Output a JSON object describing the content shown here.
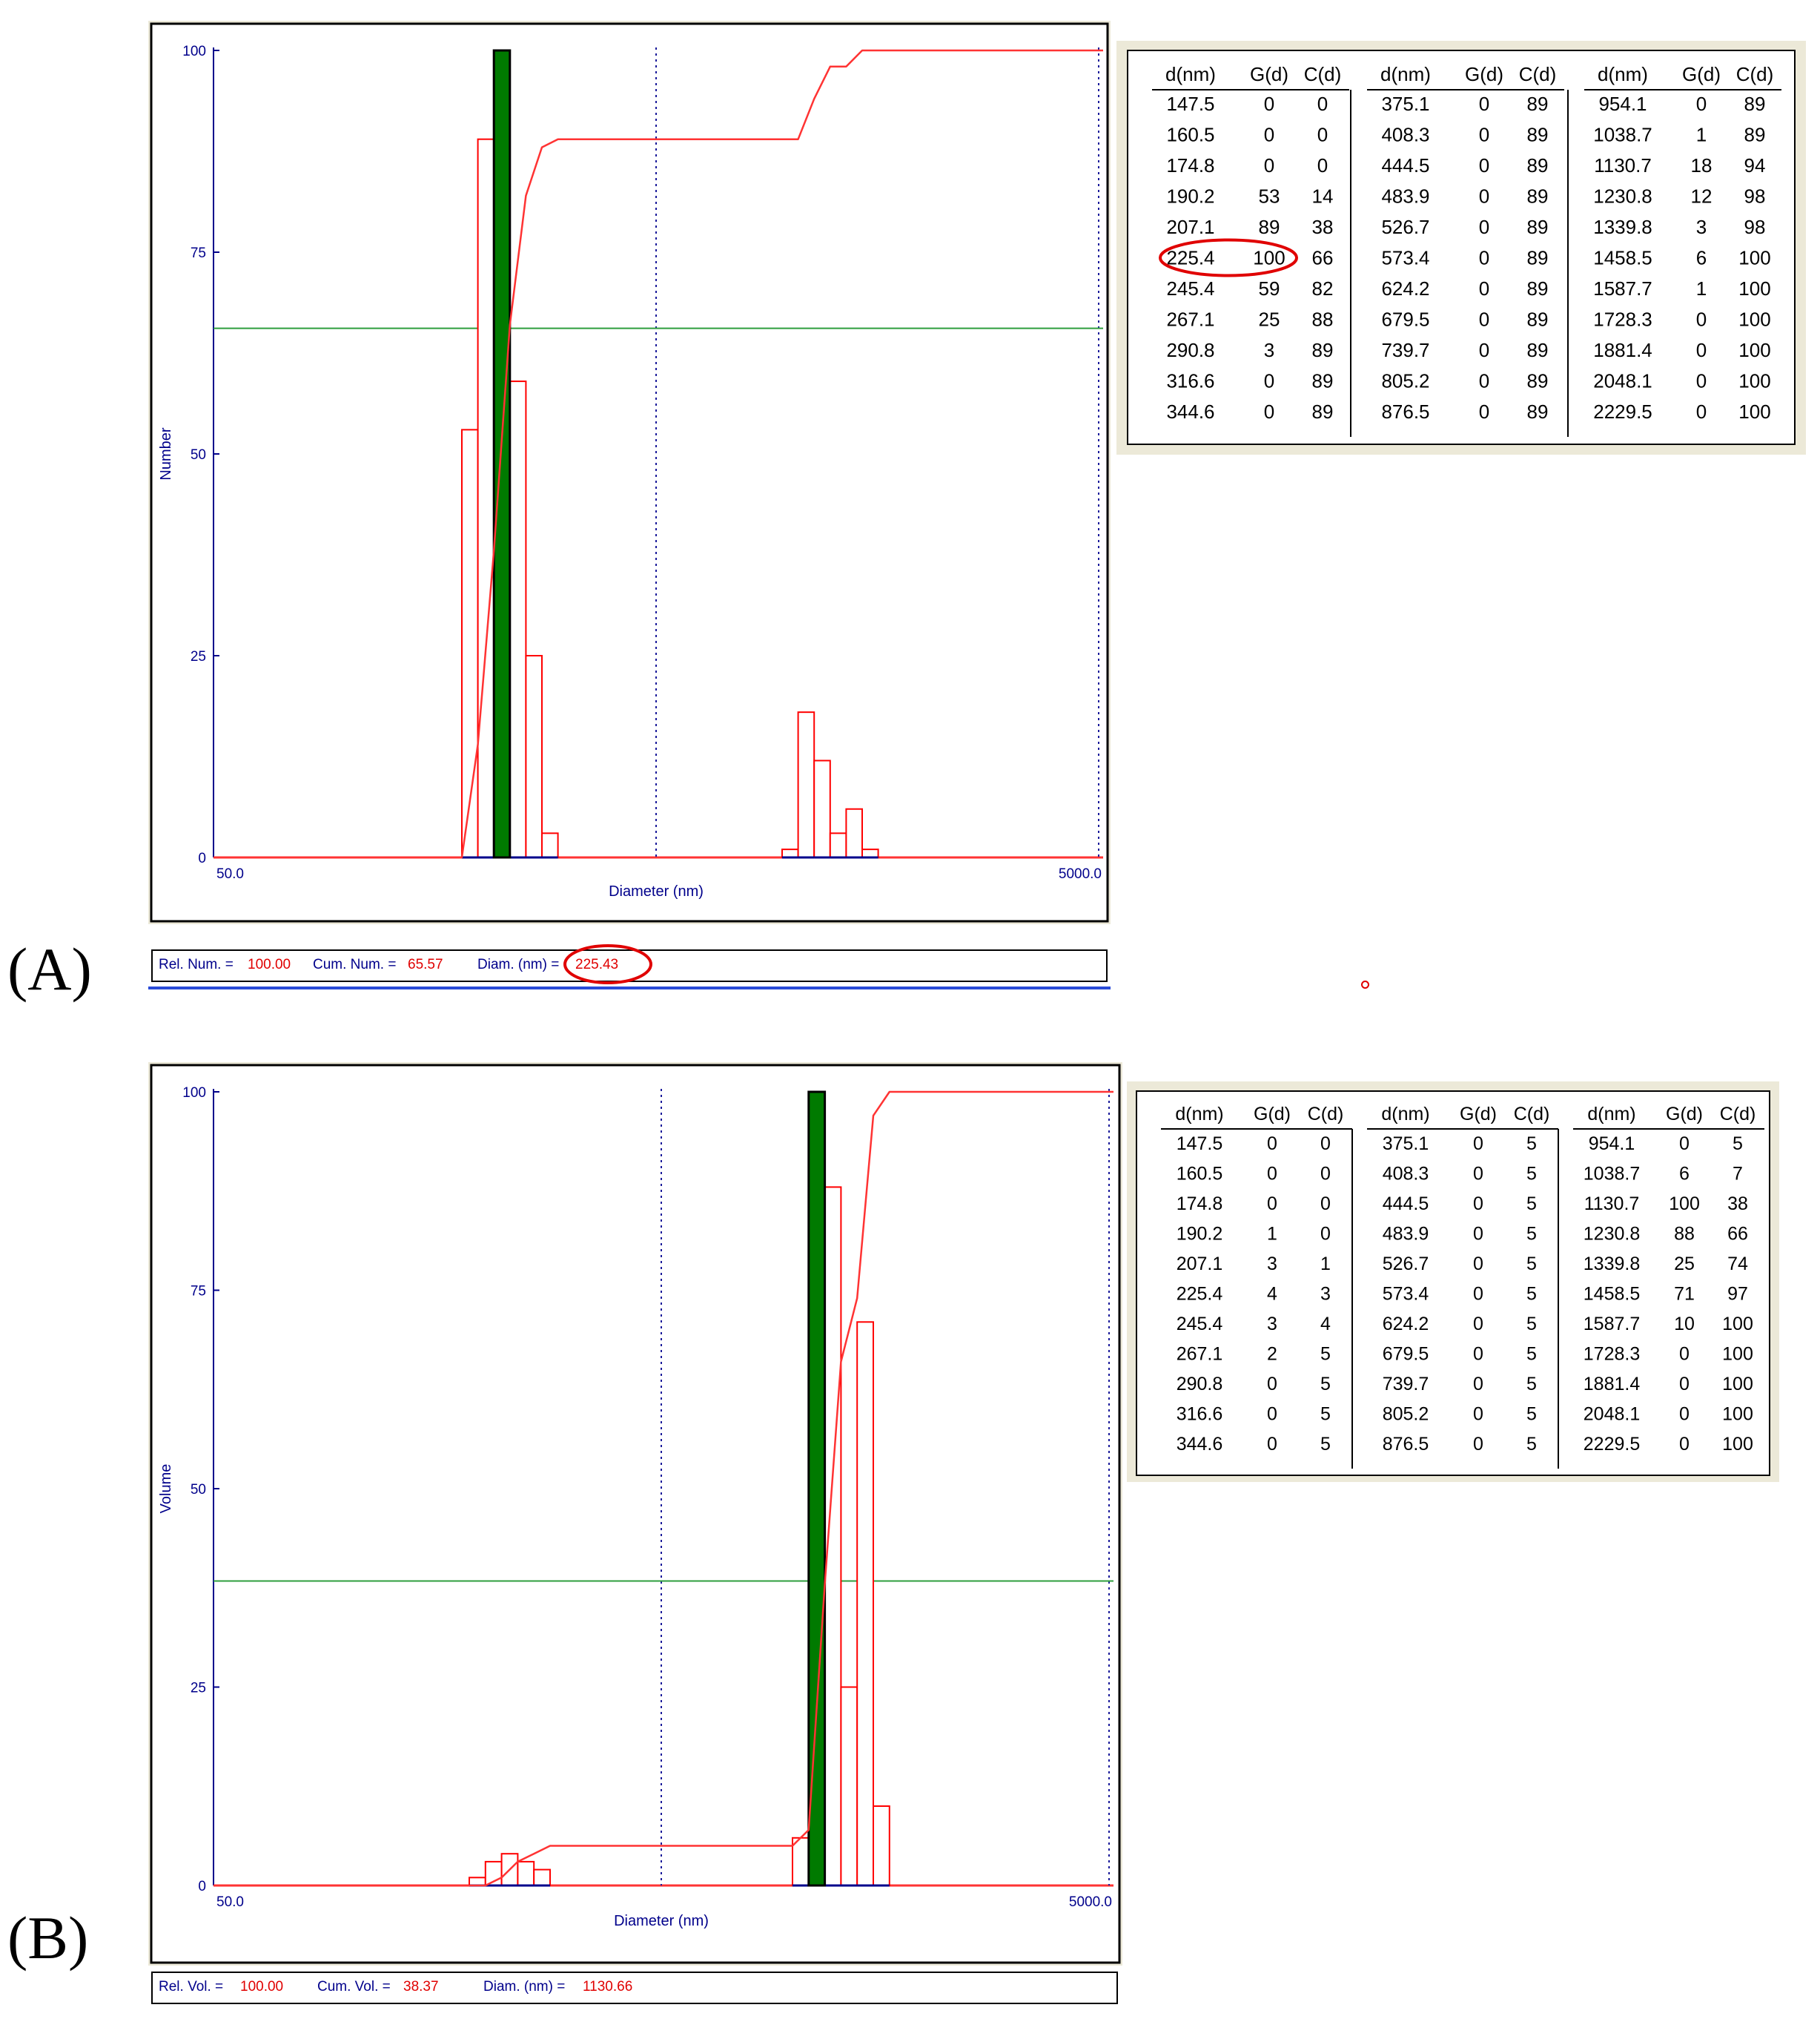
{
  "figure": {
    "panel_labels": [
      "(A)",
      "(B)"
    ],
    "colors": {
      "axis": "#00008b",
      "histogram": "#ff0000",
      "cumulative": "#ff3333",
      "selected_bar": "#007a00",
      "marker_line": "#2e9e3e",
      "grid_dotted": "#1a1a9a",
      "highlight": "#e00000"
    }
  },
  "chart_data": [
    {
      "type": "bar",
      "panel": "(A)",
      "ylabel": "Number",
      "xlabel": "Diameter (nm)",
      "x_scale": "log",
      "xlim": [
        50.0,
        5000.0
      ],
      "x_tick_labels": [
        "50.0",
        "5000.0"
      ],
      "ylim": [
        0,
        100
      ],
      "y_ticks": [
        0,
        25,
        50,
        75,
        100
      ],
      "categories": [
        "147.5",
        "160.5",
        "174.8",
        "190.2",
        "207.1",
        "225.4",
        "245.4",
        "267.1",
        "290.8",
        "316.6",
        "344.6",
        "375.1",
        "408.3",
        "444.5",
        "483.9",
        "526.7",
        "573.4",
        "624.2",
        "679.5",
        "739.7",
        "805.2",
        "876.5",
        "954.1",
        "1038.7",
        "1130.7",
        "1230.8",
        "1339.8",
        "1458.5",
        "1587.7",
        "1728.3",
        "1881.4",
        "2048.1",
        "2229.5"
      ],
      "series": [
        {
          "name": "G(d)",
          "kind": "histogram",
          "values": [
            0,
            0,
            0,
            53,
            89,
            100,
            59,
            25,
            3,
            0,
            0,
            0,
            0,
            0,
            0,
            0,
            0,
            0,
            0,
            0,
            0,
            0,
            0,
            1,
            18,
            12,
            3,
            6,
            1,
            0,
            0,
            0,
            0
          ]
        },
        {
          "name": "C(d)",
          "kind": "cumulative-line",
          "values": [
            0,
            0,
            0,
            14,
            38,
            66,
            82,
            88,
            89,
            89,
            89,
            89,
            89,
            89,
            89,
            89,
            89,
            89,
            89,
            89,
            89,
            89,
            89,
            89,
            94,
            98,
            98,
            100,
            100,
            100,
            100,
            100,
            100
          ]
        }
      ],
      "selected_bin": "225.4",
      "horizontal_marker": 65.57,
      "vertical_dotted_x": [
        500,
        5000
      ],
      "status": {
        "rel_label": "Rel. Num. =",
        "rel_value": "100.00",
        "cum_label": "Cum. Num. =",
        "cum_value": "65.57",
        "diam_label": "Diam. (nm) =",
        "diam_value": "225.43"
      },
      "table": {
        "headers": [
          "d(nm)",
          "G(d)",
          "C(d)"
        ],
        "rows": [
          [
            [
              "147.5",
              "0",
              "0"
            ],
            [
              "375.1",
              "0",
              "89"
            ],
            [
              "954.1",
              "0",
              "89"
            ]
          ],
          [
            [
              "160.5",
              "0",
              "0"
            ],
            [
              "408.3",
              "0",
              "89"
            ],
            [
              "1038.7",
              "1",
              "89"
            ]
          ],
          [
            [
              "174.8",
              "0",
              "0"
            ],
            [
              "444.5",
              "0",
              "89"
            ],
            [
              "1130.7",
              "18",
              "94"
            ]
          ],
          [
            [
              "190.2",
              "53",
              "14"
            ],
            [
              "483.9",
              "0",
              "89"
            ],
            [
              "1230.8",
              "12",
              "98"
            ]
          ],
          [
            [
              "207.1",
              "89",
              "38"
            ],
            [
              "526.7",
              "0",
              "89"
            ],
            [
              "1339.8",
              "3",
              "98"
            ]
          ],
          [
            [
              "225.4",
              "100",
              "66"
            ],
            [
              "573.4",
              "0",
              "89"
            ],
            [
              "1458.5",
              "6",
              "100"
            ]
          ],
          [
            [
              "245.4",
              "59",
              "82"
            ],
            [
              "624.2",
              "0",
              "89"
            ],
            [
              "1587.7",
              "1",
              "100"
            ]
          ],
          [
            [
              "267.1",
              "25",
              "88"
            ],
            [
              "679.5",
              "0",
              "89"
            ],
            [
              "1728.3",
              "0",
              "100"
            ]
          ],
          [
            [
              "290.8",
              "3",
              "89"
            ],
            [
              "739.7",
              "0",
              "89"
            ],
            [
              "1881.4",
              "0",
              "100"
            ]
          ],
          [
            [
              "316.6",
              "0",
              "89"
            ],
            [
              "805.2",
              "0",
              "89"
            ],
            [
              "2048.1",
              "0",
              "100"
            ]
          ],
          [
            [
              "344.6",
              "0",
              "89"
            ],
            [
              "876.5",
              "0",
              "89"
            ],
            [
              "2229.5",
              "0",
              "100"
            ]
          ]
        ],
        "circled_row": 5
      }
    },
    {
      "type": "bar",
      "panel": "(B)",
      "ylabel": "Volume",
      "xlabel": "Diameter (nm)",
      "x_scale": "log",
      "xlim": [
        50.0,
        5000.0
      ],
      "x_tick_labels": [
        "50.0",
        "5000.0"
      ],
      "ylim": [
        0,
        100
      ],
      "y_ticks": [
        0,
        25,
        50,
        75,
        100
      ],
      "categories": [
        "147.5",
        "160.5",
        "174.8",
        "190.2",
        "207.1",
        "225.4",
        "245.4",
        "267.1",
        "290.8",
        "316.6",
        "344.6",
        "375.1",
        "408.3",
        "444.5",
        "483.9",
        "526.7",
        "573.4",
        "624.2",
        "679.5",
        "739.7",
        "805.2",
        "876.5",
        "954.1",
        "1038.7",
        "1130.7",
        "1230.8",
        "1339.8",
        "1458.5",
        "1587.7",
        "1728.3",
        "1881.4",
        "2048.1",
        "2229.5"
      ],
      "series": [
        {
          "name": "G(d)",
          "kind": "histogram",
          "values": [
            0,
            0,
            0,
            1,
            3,
            4,
            3,
            2,
            0,
            0,
            0,
            0,
            0,
            0,
            0,
            0,
            0,
            0,
            0,
            0,
            0,
            0,
            0,
            6,
            100,
            88,
            25,
            71,
            10,
            0,
            0,
            0,
            0
          ]
        },
        {
          "name": "C(d)",
          "kind": "cumulative-line",
          "values": [
            0,
            0,
            0,
            0,
            1,
            3,
            4,
            5,
            5,
            5,
            5,
            5,
            5,
            5,
            5,
            5,
            5,
            5,
            5,
            5,
            5,
            5,
            5,
            7,
            38,
            66,
            74,
            97,
            100,
            100,
            100,
            100,
            100
          ]
        }
      ],
      "selected_bin": "1130.7",
      "horizontal_marker": 38.37,
      "vertical_dotted_x": [
        500,
        5000
      ],
      "status": {
        "rel_label": "Rel. Vol. =",
        "rel_value": "100.00",
        "cum_label": "Cum. Vol. =",
        "cum_value": "38.37",
        "diam_label": "Diam. (nm) =",
        "diam_value": "1130.66"
      },
      "table": {
        "headers": [
          "d(nm)",
          "G(d)",
          "C(d)"
        ],
        "rows": [
          [
            [
              "147.5",
              "0",
              "0"
            ],
            [
              "375.1",
              "0",
              "5"
            ],
            [
              "954.1",
              "0",
              "5"
            ]
          ],
          [
            [
              "160.5",
              "0",
              "0"
            ],
            [
              "408.3",
              "0",
              "5"
            ],
            [
              "1038.7",
              "6",
              "7"
            ]
          ],
          [
            [
              "174.8",
              "0",
              "0"
            ],
            [
              "444.5",
              "0",
              "5"
            ],
            [
              "1130.7",
              "100",
              "38"
            ]
          ],
          [
            [
              "190.2",
              "1",
              "0"
            ],
            [
              "483.9",
              "0",
              "5"
            ],
            [
              "1230.8",
              "88",
              "66"
            ]
          ],
          [
            [
              "207.1",
              "3",
              "1"
            ],
            [
              "526.7",
              "0",
              "5"
            ],
            [
              "1339.8",
              "25",
              "74"
            ]
          ],
          [
            [
              "225.4",
              "4",
              "3"
            ],
            [
              "573.4",
              "0",
              "5"
            ],
            [
              "1458.5",
              "71",
              "97"
            ]
          ],
          [
            [
              "245.4",
              "3",
              "4"
            ],
            [
              "624.2",
              "0",
              "5"
            ],
            [
              "1587.7",
              "10",
              "100"
            ]
          ],
          [
            [
              "267.1",
              "2",
              "5"
            ],
            [
              "679.5",
              "0",
              "5"
            ],
            [
              "1728.3",
              "0",
              "100"
            ]
          ],
          [
            [
              "290.8",
              "0",
              "5"
            ],
            [
              "739.7",
              "0",
              "5"
            ],
            [
              "1881.4",
              "0",
              "100"
            ]
          ],
          [
            [
              "316.6",
              "0",
              "5"
            ],
            [
              "805.2",
              "0",
              "5"
            ],
            [
              "2048.1",
              "0",
              "100"
            ]
          ],
          [
            [
              "344.6",
              "0",
              "5"
            ],
            [
              "876.5",
              "0",
              "5"
            ],
            [
              "2229.5",
              "0",
              "100"
            ]
          ]
        ],
        "circled_row": -1
      }
    }
  ]
}
